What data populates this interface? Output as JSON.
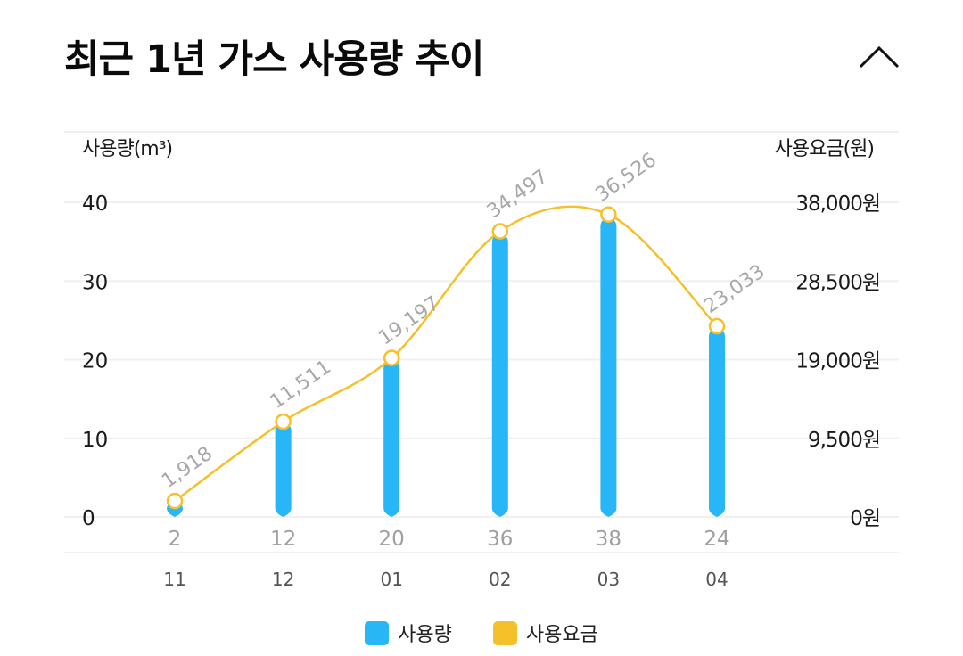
{
  "header": {
    "title": "최근 1년 가스 사용량 추이",
    "collapse_icon": "chevron-up-icon"
  },
  "colors": {
    "usage_bar": "#29b6f6",
    "fee_line": "#f5c02a",
    "gridline": "#f0f0f0"
  },
  "chart_data": {
    "type": "bar",
    "title": "최근 1년 가스 사용량 추이",
    "categories": [
      "11",
      "12",
      "01",
      "02",
      "03",
      "04"
    ],
    "ylabel": "사용량(m³)",
    "y2label": "사용요금(원)",
    "ylim": [
      0,
      40
    ],
    "y2lim": [
      0,
      38000
    ],
    "yticks": [
      "0",
      "10",
      "20",
      "30",
      "40"
    ],
    "y2ticks": [
      "0원",
      "9,500원",
      "19,000원",
      "28,500원",
      "38,000원"
    ],
    "grid": true,
    "legend_position": "bottom",
    "series": [
      {
        "name": "사용량",
        "type": "bar",
        "axis": "left",
        "values": [
          2,
          12,
          20,
          36,
          38,
          24
        ],
        "labels": [
          "2",
          "12",
          "20",
          "36",
          "38",
          "24"
        ]
      },
      {
        "name": "사용요금",
        "type": "line",
        "axis": "right",
        "smooth": true,
        "values": [
          1918,
          11511,
          19197,
          34497,
          36526,
          23033
        ],
        "labels": [
          "1,918",
          "11,511",
          "19,197",
          "34,497",
          "36,526",
          "23,033"
        ]
      }
    ]
  },
  "legend": [
    {
      "label": "사용량",
      "color": "#29b6f6"
    },
    {
      "label": "사용요금",
      "color": "#f5c02a"
    }
  ]
}
